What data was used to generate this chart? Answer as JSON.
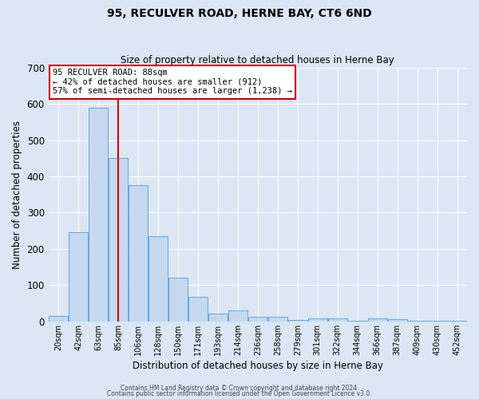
{
  "title": "95, RECULVER ROAD, HERNE BAY, CT6 6ND",
  "subtitle": "Size of property relative to detached houses in Herne Bay",
  "xlabel": "Distribution of detached houses by size in Herne Bay",
  "ylabel": "Number of detached properties",
  "bar_color": "#c5d8ef",
  "bar_edge_color": "#5b9bd5",
  "background_color": "#dce6f5",
  "grid_color": "#ffffff",
  "categories": [
    "20sqm",
    "42sqm",
    "63sqm",
    "85sqm",
    "106sqm",
    "128sqm",
    "150sqm",
    "171sqm",
    "193sqm",
    "214sqm",
    "236sqm",
    "258sqm",
    "279sqm",
    "301sqm",
    "322sqm",
    "344sqm",
    "366sqm",
    "387sqm",
    "409sqm",
    "430sqm",
    "452sqm"
  ],
  "values": [
    15,
    245,
    590,
    450,
    375,
    235,
    120,
    68,
    22,
    30,
    12,
    12,
    5,
    8,
    8,
    3,
    8,
    6,
    1,
    1,
    1
  ],
  "ylim": [
    0,
    700
  ],
  "yticks": [
    0,
    100,
    200,
    300,
    400,
    500,
    600,
    700
  ],
  "red_line_color": "#cc0000",
  "annotation_line1": "95 RECULVER ROAD: 88sqm",
  "annotation_line2": "← 42% of detached houses are smaller (912)",
  "annotation_line3": "57% of semi-detached houses are larger (1,238) →",
  "annotation_box_color": "#ffffff",
  "annotation_box_edge_color": "#cc0000",
  "footer_line1": "Contains HM Land Registry data © Crown copyright and database right 2024.",
  "footer_line2": "Contains public sector information licensed under the Open Government Licence v3.0."
}
